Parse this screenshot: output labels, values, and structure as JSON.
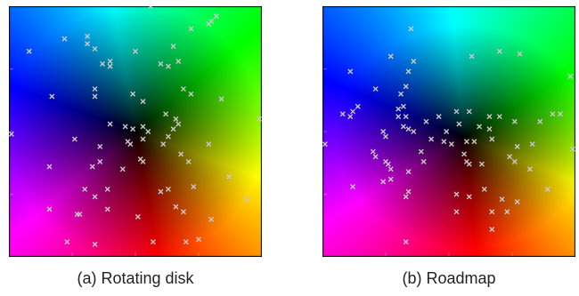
{
  "panels": [
    {
      "id": "a",
      "caption": "(a) Rotating disk",
      "field": "rotating",
      "samples": [
        [
          0.08,
          0.82
        ],
        [
          0.22,
          0.87
        ],
        [
          0.31,
          0.85
        ],
        [
          0.31,
          0.88
        ],
        [
          0.34,
          0.83
        ],
        [
          0.37,
          0.77
        ],
        [
          0.4,
          0.78
        ],
        [
          0.4,
          0.76
        ],
        [
          0.5,
          0.82
        ],
        [
          0.6,
          0.77
        ],
        [
          0.63,
          0.76
        ],
        [
          0.65,
          0.84
        ],
        [
          0.67,
          0.78
        ],
        [
          0.72,
          0.91
        ],
        [
          0.79,
          0.93
        ],
        [
          0.8,
          0.94
        ],
        [
          0.82,
          0.96
        ],
        [
          0.17,
          0.64
        ],
        [
          0.34,
          0.67
        ],
        [
          0.34,
          0.64
        ],
        [
          0.49,
          0.65
        ],
        [
          0.53,
          0.62
        ],
        [
          0.69,
          0.67
        ],
        [
          0.62,
          0.57
        ],
        [
          0.72,
          0.65
        ],
        [
          0.84,
          0.63
        ],
        [
          0.66,
          0.55
        ],
        [
          0.01,
          0.49
        ],
        [
          0.4,
          0.53
        ],
        [
          0.46,
          0.52
        ],
        [
          0.49,
          0.51
        ],
        [
          0.53,
          0.52
        ],
        [
          0.53,
          0.47
        ],
        [
          0.55,
          0.5
        ],
        [
          0.63,
          0.48
        ],
        [
          0.65,
          0.51
        ],
        [
          0.67,
          0.53
        ],
        [
          0.26,
          0.47
        ],
        [
          0.36,
          0.44
        ],
        [
          0.47,
          0.46
        ],
        [
          0.48,
          0.45
        ],
        [
          0.61,
          0.45
        ],
        [
          0.68,
          0.41
        ],
        [
          0.36,
          0.38
        ],
        [
          0.52,
          0.39
        ],
        [
          0.71,
          0.38
        ],
        [
          0.99,
          0.55
        ],
        [
          0.16,
          0.36
        ],
        [
          0.33,
          0.36
        ],
        [
          0.45,
          0.35
        ],
        [
          0.53,
          0.38
        ],
        [
          0.3,
          0.27
        ],
        [
          0.39,
          0.27
        ],
        [
          0.6,
          0.26
        ],
        [
          0.63,
          0.27
        ],
        [
          0.73,
          0.28
        ],
        [
          0.87,
          0.32
        ],
        [
          0.94,
          0.23
        ],
        [
          0.16,
          0.19
        ],
        [
          0.27,
          0.17
        ],
        [
          0.28,
          0.17
        ],
        [
          0.39,
          0.19
        ],
        [
          0.34,
          0.24
        ],
        [
          0.51,
          0.16
        ],
        [
          0.66,
          0.2
        ],
        [
          0.69,
          0.18
        ],
        [
          0.8,
          0.15
        ],
        [
          0.23,
          0.06
        ],
        [
          0.34,
          0.05
        ],
        [
          0.57,
          0.06
        ],
        [
          0.7,
          0.06
        ],
        [
          0.75,
          0.07
        ],
        [
          0.56,
          1.0
        ],
        [
          0.79,
          0.45
        ]
      ]
    },
    {
      "id": "b",
      "caption": "(b) Roadmap",
      "field": "roadmap",
      "samples": [
        [
          0.35,
          0.91
        ],
        [
          0.27,
          0.8
        ],
        [
          0.36,
          0.78
        ],
        [
          0.34,
          0.74
        ],
        [
          0.59,
          0.8
        ],
        [
          0.7,
          0.82
        ],
        [
          0.78,
          0.81
        ],
        [
          0.98,
          0.72
        ],
        [
          0.11,
          0.74
        ],
        [
          0.33,
          0.68
        ],
        [
          0.21,
          0.67
        ],
        [
          0.31,
          0.65
        ],
        [
          0.14,
          0.6
        ],
        [
          0.12,
          0.58
        ],
        [
          0.08,
          0.57
        ],
        [
          0.11,
          0.56
        ],
        [
          0.3,
          0.59
        ],
        [
          0.32,
          0.6
        ],
        [
          0.3,
          0.56
        ],
        [
          0.33,
          0.56
        ],
        [
          0.32,
          0.52
        ],
        [
          0.46,
          0.56
        ],
        [
          0.53,
          0.58
        ],
        [
          0.58,
          0.58
        ],
        [
          0.66,
          0.56
        ],
        [
          0.7,
          0.56
        ],
        [
          0.76,
          0.54
        ],
        [
          0.86,
          0.54
        ],
        [
          0.91,
          0.57
        ],
        [
          0.94,
          0.57
        ],
        [
          0.41,
          0.54
        ],
        [
          0.49,
          0.5
        ],
        [
          0.54,
          0.53
        ],
        [
          0.62,
          0.52
        ],
        [
          0.66,
          0.51
        ],
        [
          0.01,
          0.45
        ],
        [
          0.24,
          0.5
        ],
        [
          0.25,
          0.48
        ],
        [
          0.34,
          0.51
        ],
        [
          0.36,
          0.5
        ],
        [
          0.43,
          0.47
        ],
        [
          0.48,
          0.46
        ],
        [
          0.51,
          0.45
        ],
        [
          0.57,
          0.46
        ],
        [
          0.6,
          0.46
        ],
        [
          0.67,
          0.47
        ],
        [
          0.77,
          0.44
        ],
        [
          0.83,
          0.45
        ],
        [
          0.99,
          0.43
        ],
        [
          0.2,
          0.42
        ],
        [
          0.21,
          0.4
        ],
        [
          0.25,
          0.38
        ],
        [
          0.26,
          0.37
        ],
        [
          0.39,
          0.42
        ],
        [
          0.4,
          0.38
        ],
        [
          0.56,
          0.41
        ],
        [
          0.57,
          0.38
        ],
        [
          0.58,
          0.37
        ],
        [
          0.63,
          0.37
        ],
        [
          0.74,
          0.4
        ],
        [
          0.76,
          0.38
        ],
        [
          0.82,
          0.35
        ],
        [
          0.27,
          0.35
        ],
        [
          0.27,
          0.31
        ],
        [
          0.34,
          0.34
        ],
        [
          0.12,
          0.28
        ],
        [
          0.24,
          0.3
        ],
        [
          0.34,
          0.26
        ],
        [
          0.33,
          0.24
        ],
        [
          0.53,
          0.25
        ],
        [
          0.58,
          0.24
        ],
        [
          0.64,
          0.27
        ],
        [
          0.71,
          0.23
        ],
        [
          0.77,
          0.22
        ],
        [
          0.53,
          0.18
        ],
        [
          0.67,
          0.18
        ],
        [
          0.73,
          0.18
        ],
        [
          0.33,
          0.06
        ],
        [
          0.67,
          0.11
        ],
        [
          0.89,
          0.27
        ]
      ]
    }
  ]
}
